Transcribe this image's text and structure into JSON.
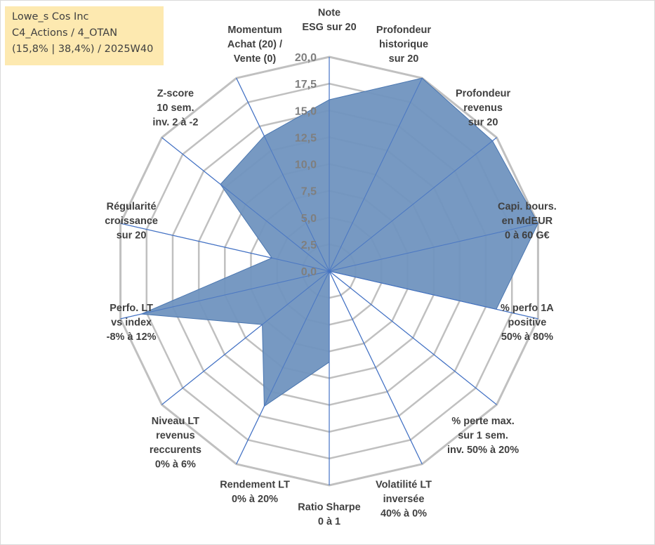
{
  "info_box": {
    "line1": "Lowe_s Cos Inc",
    "line2": "C4_Actions / 4_OTAN",
    "line3": "(15,8% | 38,4%) / 2025W40"
  },
  "colors": {
    "fill": "#7094bf",
    "stroke": "#4a76b0",
    "grid": "#c0c0c0",
    "spoke": "#4472c4",
    "tick": "#7f7f7f",
    "label": "#404040",
    "info_bg": "#fde9b0"
  },
  "chart_data": {
    "type": "radar",
    "rmin": 0,
    "rmax": 20,
    "tick_step": 2.5,
    "tick_labels": [
      "0,0",
      "2,5",
      "5,0",
      "7,5",
      "10,0",
      "12,5",
      "15,0",
      "17,5",
      "20,0"
    ],
    "axes": [
      {
        "label_lines": [
          "Note",
          "ESG sur 20"
        ],
        "value": 16.0
      },
      {
        "label_lines": [
          "Profondeur",
          "historique",
          "sur 20"
        ],
        "value": 20.0
      },
      {
        "label_lines": [
          "Profondeur",
          "revenus",
          "sur 20"
        ],
        "value": 19.5
      },
      {
        "label_lines": [
          "Capi. bours.",
          "en MdEUR",
          "0 à 60 G€"
        ],
        "value": 20.0
      },
      {
        "label_lines": [
          "% perfo 1A",
          "positive",
          "50% à 80%"
        ],
        "value": 16.0
      },
      {
        "label_lines": [
          "% perte max.",
          "sur 1 sem.",
          "inv. 50% à 20%"
        ],
        "value": 0.0
      },
      {
        "label_lines": [
          "Volatilité LT",
          "inversée",
          "40% à 0%"
        ],
        "value": 0.0
      },
      {
        "label_lines": [
          "Ratio Sharpe",
          "0 à 1"
        ],
        "value": 8.5
      },
      {
        "label_lines": [
          "Rendement LT",
          "0% à 20%"
        ],
        "value": 14.0
      },
      {
        "label_lines": [
          "Niveau LT",
          "revenus",
          "reccurents",
          "0% à 6%"
        ],
        "value": 8.0
      },
      {
        "label_lines": [
          "Perfo. LT",
          "vs index",
          "-8% à 12%"
        ],
        "value": 18.0
      },
      {
        "label_lines": [
          "Régularité",
          "croissance",
          "sur 20"
        ],
        "value": 5.5
      },
      {
        "label_lines": [
          "Z-score",
          "10 sem.",
          "inv. 2 à -2"
        ],
        "value": 13.0
      },
      {
        "label_lines": [
          "Momentum",
          "Achat (20) /",
          "Vente (0)"
        ],
        "value": 14.0
      }
    ]
  }
}
